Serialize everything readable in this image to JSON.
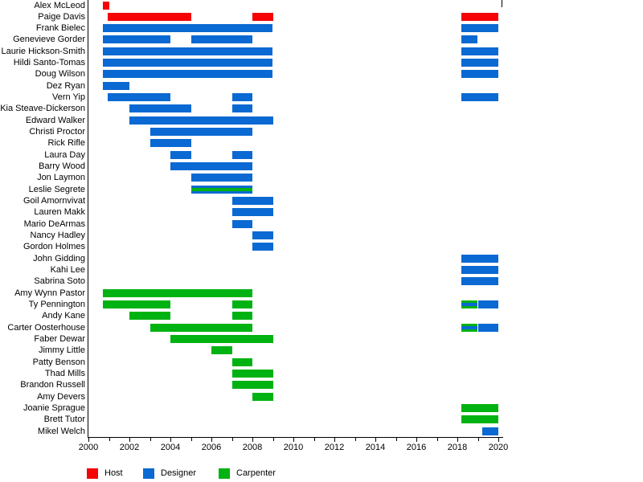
{
  "chart_data": {
    "type": "gantt-timeline",
    "title": "",
    "x_axis": {
      "min": 2000,
      "max": 2020,
      "major_tick_step": 2,
      "minor_tick_step": 1,
      "tick_labels": [
        "2000",
        "2002",
        "2004",
        "2006",
        "2008",
        "2010",
        "2012",
        "2014",
        "2016",
        "2018",
        "2020"
      ],
      "grid": false
    },
    "role_colors": {
      "host": "#f40404",
      "designer": "#0a69d2",
      "carpenter": "#00b212"
    },
    "axis_color": "#000000",
    "legend_position": "bottom-left",
    "legend": [
      {
        "label": "Host",
        "role": "host"
      },
      {
        "label": "Designer",
        "role": "designer"
      },
      {
        "label": "Carpenter",
        "role": "carpenter"
      }
    ],
    "rows": [
      {
        "name": "Alex McLeod",
        "bars": [
          {
            "start": 2000.72,
            "end": 2001.02,
            "role": "host"
          }
        ]
      },
      {
        "name": "Paige Davis",
        "bars": [
          {
            "start": 2000.95,
            "end": 2005.03,
            "role": "host"
          },
          {
            "start": 2008,
            "end": 2009,
            "role": "host"
          },
          {
            "start": 2018.2,
            "end": 2020,
            "role": "host"
          }
        ]
      },
      {
        "name": "Frank Bielec",
        "bars": [
          {
            "start": 2000.72,
            "end": 2009,
            "role": "designer"
          },
          {
            "start": 2018.2,
            "end": 2020,
            "role": "designer"
          }
        ]
      },
      {
        "name": "Genevieve Gorder",
        "bars": [
          {
            "start": 2000.72,
            "end": 2004,
            "role": "designer"
          },
          {
            "start": 2005,
            "end": 2008,
            "role": "designer"
          },
          {
            "start": 2018.2,
            "end": 2019,
            "role": "designer"
          }
        ]
      },
      {
        "name": "Laurie Hickson-Smith",
        "bars": [
          {
            "start": 2000.72,
            "end": 2009,
            "role": "designer"
          },
          {
            "start": 2018.2,
            "end": 2020,
            "role": "designer"
          }
        ]
      },
      {
        "name": "Hildi Santo-Tomas",
        "bars": [
          {
            "start": 2000.72,
            "end": 2009,
            "role": "designer"
          },
          {
            "start": 2018.2,
            "end": 2020,
            "role": "designer"
          }
        ]
      },
      {
        "name": "Doug Wilson",
        "bars": [
          {
            "start": 2000.72,
            "end": 2009,
            "role": "designer"
          },
          {
            "start": 2018.2,
            "end": 2020,
            "role": "designer"
          }
        ]
      },
      {
        "name": "Dez Ryan",
        "bars": [
          {
            "start": 2000.72,
            "end": 2002,
            "role": "designer"
          }
        ]
      },
      {
        "name": "Vern Yip",
        "bars": [
          {
            "start": 2000.95,
            "end": 2004,
            "role": "designer"
          },
          {
            "start": 2007,
            "end": 2008,
            "role": "designer"
          },
          {
            "start": 2018.2,
            "end": 2020,
            "role": "designer"
          }
        ]
      },
      {
        "name": "Kia Steave-Dickerson",
        "bars": [
          {
            "start": 2002,
            "end": 2005,
            "role": "designer"
          },
          {
            "start": 2007,
            "end": 2008,
            "role": "designer"
          }
        ]
      },
      {
        "name": "Edward Walker",
        "bars": [
          {
            "start": 2002,
            "end": 2009,
            "role": "designer"
          }
        ]
      },
      {
        "name": "Christi Proctor",
        "bars": [
          {
            "start": 2003,
            "end": 2008,
            "role": "designer"
          }
        ]
      },
      {
        "name": "Rick Rifle",
        "bars": [
          {
            "start": 2003,
            "end": 2005,
            "role": "designer"
          }
        ]
      },
      {
        "name": "Laura Day",
        "bars": [
          {
            "start": 2004,
            "end": 2005,
            "role": "designer"
          },
          {
            "start": 2007,
            "end": 2008,
            "role": "designer"
          }
        ]
      },
      {
        "name": "Barry Wood",
        "bars": [
          {
            "start": 2004,
            "end": 2008,
            "role": "designer"
          }
        ]
      },
      {
        "name": "Jon Laymon",
        "bars": [
          {
            "start": 2005,
            "end": 2008,
            "role": "designer"
          }
        ]
      },
      {
        "name": "Leslie Segrete",
        "bars": [
          {
            "start": 2005,
            "end": 2008,
            "role": "designer",
            "stripe": "carpenter"
          }
        ]
      },
      {
        "name": "Goil Amornvivat",
        "bars": [
          {
            "start": 2007,
            "end": 2009,
            "role": "designer"
          }
        ]
      },
      {
        "name": "Lauren Makk",
        "bars": [
          {
            "start": 2007,
            "end": 2009,
            "role": "designer"
          }
        ]
      },
      {
        "name": "Mario DeArmas",
        "bars": [
          {
            "start": 2007,
            "end": 2008,
            "role": "designer"
          }
        ]
      },
      {
        "name": "Nancy Hadley",
        "bars": [
          {
            "start": 2008,
            "end": 2009,
            "role": "designer"
          }
        ]
      },
      {
        "name": "Gordon Holmes",
        "bars": [
          {
            "start": 2008,
            "end": 2009,
            "role": "designer"
          }
        ]
      },
      {
        "name": "John Gidding",
        "bars": [
          {
            "start": 2018.2,
            "end": 2020,
            "role": "designer"
          }
        ]
      },
      {
        "name": "Kahi Lee",
        "bars": [
          {
            "start": 2018.2,
            "end": 2020,
            "role": "designer"
          }
        ]
      },
      {
        "name": "Sabrina Soto",
        "bars": [
          {
            "start": 2018.2,
            "end": 2020,
            "role": "designer"
          }
        ]
      },
      {
        "name": "Amy Wynn Pastor",
        "bars": [
          {
            "start": 2000.72,
            "end": 2008,
            "role": "carpenter"
          }
        ]
      },
      {
        "name": "Ty Pennington",
        "bars": [
          {
            "start": 2000.72,
            "end": 2004,
            "role": "carpenter"
          },
          {
            "start": 2007,
            "end": 2008,
            "role": "carpenter"
          },
          {
            "start": 2018.2,
            "end": 2019,
            "role": "carpenter",
            "stripe": "designer"
          },
          {
            "start": 2019,
            "end": 2020,
            "role": "designer"
          }
        ]
      },
      {
        "name": "Andy Kane",
        "bars": [
          {
            "start": 2002,
            "end": 2004,
            "role": "carpenter"
          },
          {
            "start": 2007,
            "end": 2008,
            "role": "carpenter"
          }
        ]
      },
      {
        "name": "Carter Oosterhouse",
        "bars": [
          {
            "start": 2003,
            "end": 2008,
            "role": "carpenter"
          },
          {
            "start": 2018.2,
            "end": 2019,
            "role": "carpenter",
            "stripe": "designer"
          },
          {
            "start": 2019,
            "end": 2020,
            "role": "designer"
          }
        ]
      },
      {
        "name": "Faber Dewar",
        "bars": [
          {
            "start": 2004,
            "end": 2009,
            "role": "carpenter"
          }
        ]
      },
      {
        "name": "Jimmy Little",
        "bars": [
          {
            "start": 2006,
            "end": 2007,
            "role": "carpenter"
          }
        ]
      },
      {
        "name": "Patty Benson",
        "bars": [
          {
            "start": 2007,
            "end": 2008,
            "role": "carpenter"
          }
        ]
      },
      {
        "name": "Thad Mills",
        "bars": [
          {
            "start": 2007,
            "end": 2009,
            "role": "carpenter"
          }
        ]
      },
      {
        "name": "Brandon Russell",
        "bars": [
          {
            "start": 2007,
            "end": 2009,
            "role": "carpenter"
          }
        ]
      },
      {
        "name": "Amy Devers",
        "bars": [
          {
            "start": 2008,
            "end": 2009,
            "role": "carpenter"
          }
        ]
      },
      {
        "name": "Joanie Sprague",
        "bars": [
          {
            "start": 2018.2,
            "end": 2020,
            "role": "carpenter"
          }
        ]
      },
      {
        "name": "Brett Tutor",
        "bars": [
          {
            "start": 2018.2,
            "end": 2020,
            "role": "carpenter"
          }
        ]
      },
      {
        "name": "Mikel Welch",
        "bars": [
          {
            "start": 2019.2,
            "end": 2020,
            "role": "designer"
          }
        ]
      }
    ]
  }
}
